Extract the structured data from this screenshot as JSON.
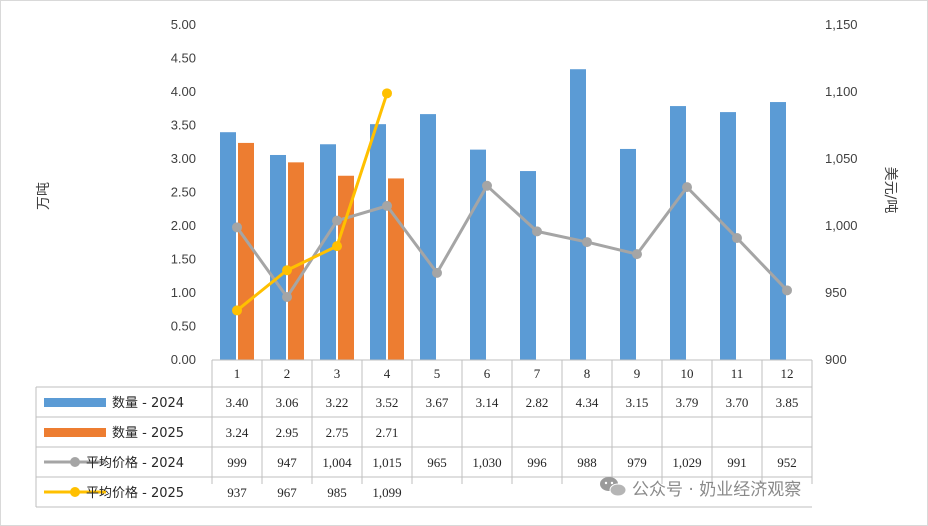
{
  "chart_data": {
    "type": "bar",
    "title": "",
    "xlabel": "",
    "ylabel": "万吨",
    "y2label": "美元/吨",
    "ylim": [
      0,
      5
    ],
    "y_ticks": [
      "0.00",
      "0.50",
      "1.00",
      "1.50",
      "2.00",
      "2.50",
      "3.00",
      "3.50",
      "4.00",
      "4.50",
      "5.00"
    ],
    "y2lim": [
      900,
      1150
    ],
    "y2_ticks": [
      "900",
      "950",
      "1,000",
      "1,050",
      "1,100",
      "1,150"
    ],
    "grid": false,
    "legend": "data-table-left",
    "categories": [
      "1",
      "2",
      "3",
      "4",
      "5",
      "6",
      "7",
      "8",
      "9",
      "10",
      "11",
      "12"
    ],
    "series": [
      {
        "name": "数量 - 2024",
        "kind": "bar",
        "axis": "left",
        "color": "#5b9bd5",
        "values": [
          3.4,
          3.06,
          3.22,
          3.52,
          3.67,
          3.14,
          2.82,
          4.34,
          3.15,
          3.79,
          3.7,
          3.85
        ],
        "labels": [
          "3.40",
          "3.06",
          "3.22",
          "3.52",
          "3.67",
          "3.14",
          "2.82",
          "4.34",
          "3.15",
          "3.79",
          "3.70",
          "3.85"
        ]
      },
      {
        "name": "数量 - 2025",
        "kind": "bar",
        "axis": "left",
        "color": "#ed7d31",
        "values": [
          3.24,
          2.95,
          2.75,
          2.71,
          null,
          null,
          null,
          null,
          null,
          null,
          null,
          null
        ],
        "labels": [
          "3.24",
          "2.95",
          "2.75",
          "2.71",
          "",
          "",
          "",
          "",
          "",
          "",
          "",
          ""
        ]
      },
      {
        "name": "平均价格 - 2024",
        "kind": "line",
        "axis": "right",
        "color": "#a5a5a5",
        "values": [
          999,
          947,
          1004,
          1015,
          965,
          1030,
          996,
          988,
          979,
          1029,
          991,
          952
        ],
        "labels": [
          "999",
          "947",
          "1,004",
          "1,015",
          "965",
          "1,030",
          "996",
          "988",
          "979",
          "1,029",
          "991",
          "952"
        ]
      },
      {
        "name": "平均价格 - 2025",
        "kind": "line",
        "axis": "right",
        "color": "#ffc000",
        "values": [
          937,
          967,
          985,
          1099,
          null,
          null,
          null,
          null,
          null,
          null,
          null,
          null
        ],
        "labels": [
          "937",
          "967",
          "985",
          "1,099",
          "",
          "",
          "",
          "",
          "",
          "",
          "",
          ""
        ]
      }
    ]
  },
  "watermark": {
    "text": "公众号 · 奶业经济观察",
    "icon": "wechat-icon"
  }
}
